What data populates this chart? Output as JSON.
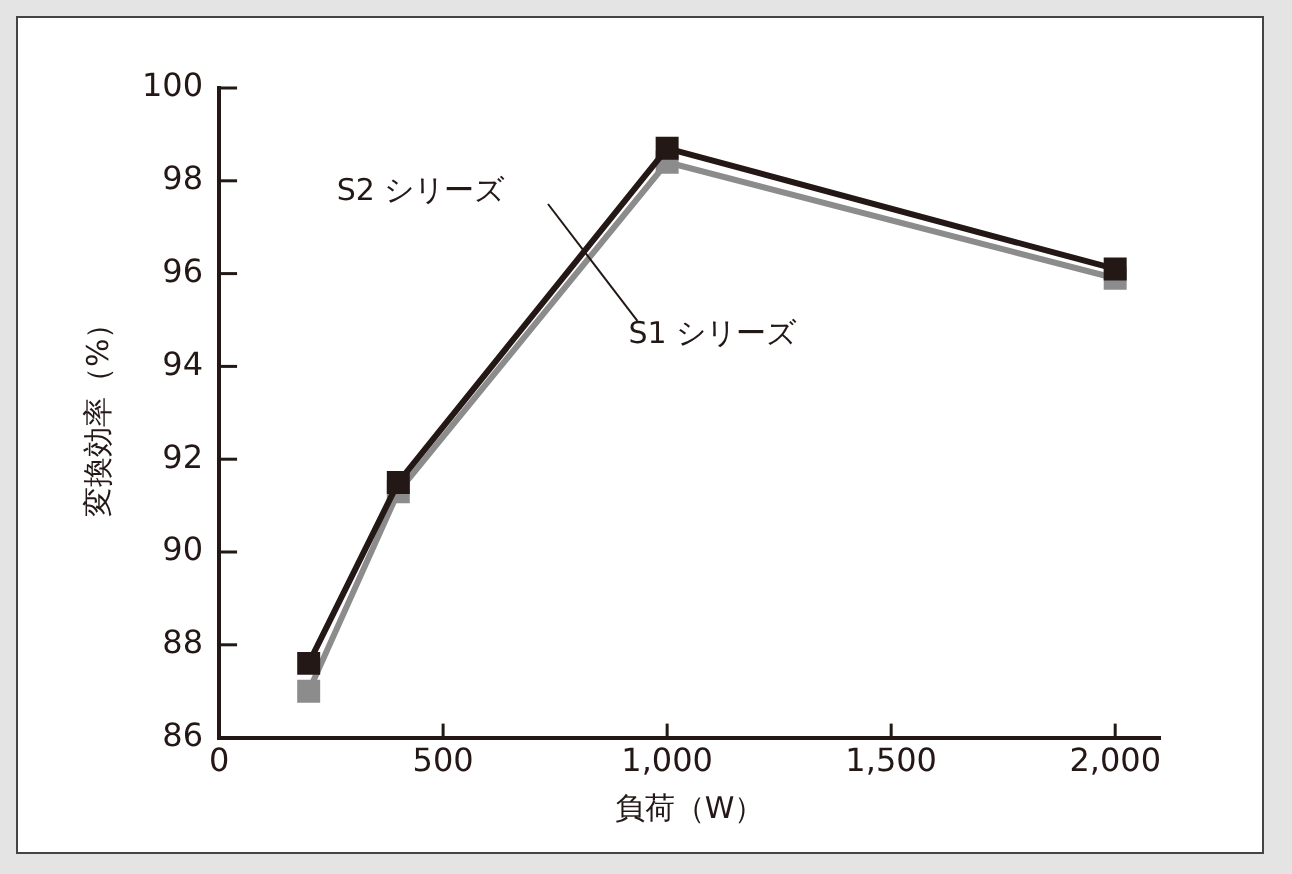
{
  "chart_data": {
    "type": "line",
    "xlabel": "負荷（W）",
    "ylabel": "変換効率（%）",
    "x": [
      200,
      400,
      1000,
      2000
    ],
    "series": [
      {
        "name": "S2 シリーズ",
        "color": "#231815",
        "values": [
          87.6,
          91.5,
          98.7,
          96.1
        ]
      },
      {
        "name": "S1 シリーズ",
        "color": "#8c8c8c",
        "values": [
          87.0,
          91.3,
          98.4,
          95.9
        ]
      }
    ],
    "xlim": [
      0,
      2100
    ],
    "xticks": [
      0,
      500,
      {
        "value": 1000,
        "label": "1,000"
      },
      {
        "value": 1500,
        "label": "1,500"
      },
      {
        "value": 2000,
        "label": "2,000"
      }
    ],
    "ylim": [
      86,
      100
    ],
    "yticks": [
      86,
      88,
      90,
      92,
      94,
      96,
      98,
      100
    ],
    "grid": false,
    "legend": false,
    "marker": "square",
    "line_style": "solid"
  }
}
